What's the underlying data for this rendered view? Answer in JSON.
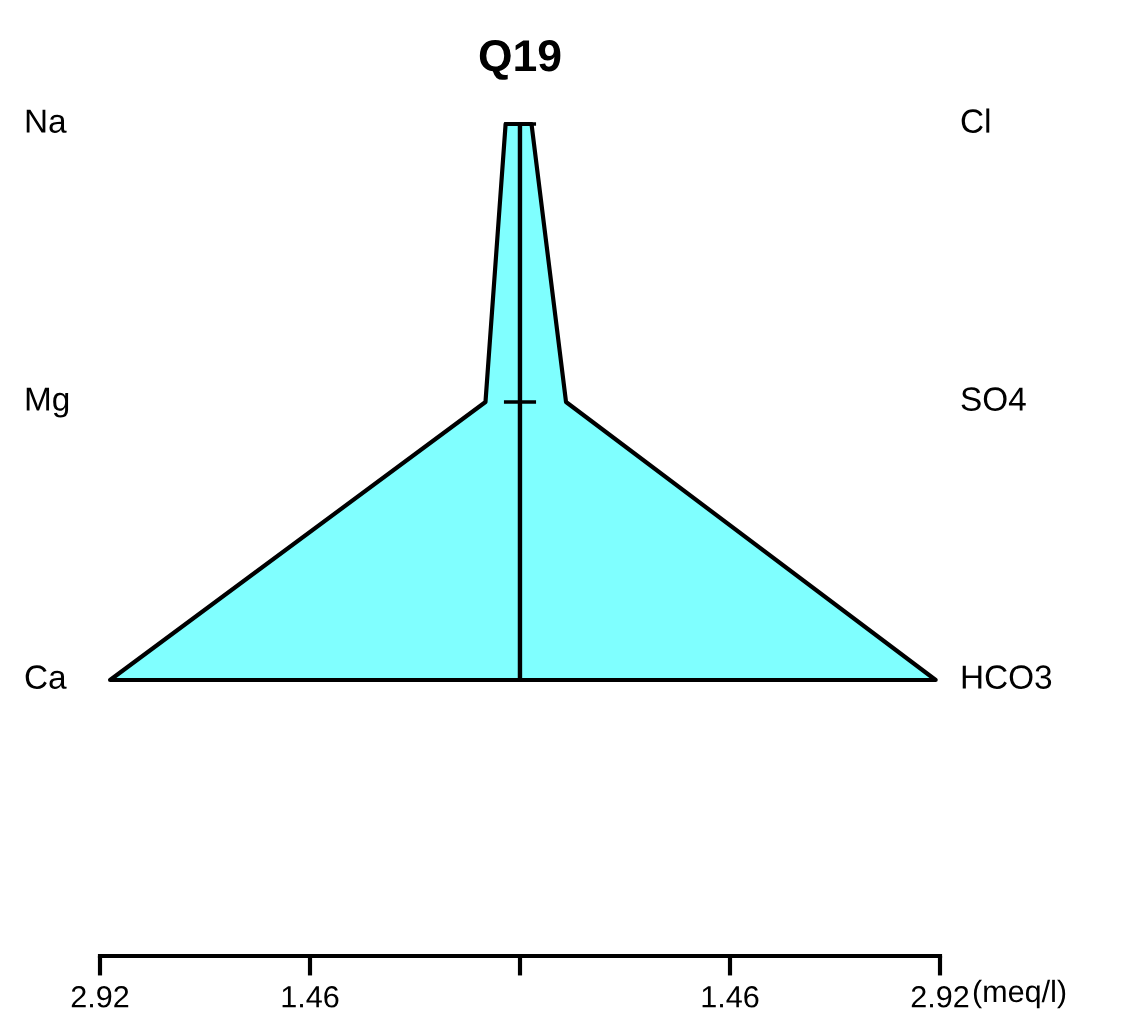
{
  "chart_data": {
    "type": "area",
    "orientation": "horizontal",
    "title": "Q19",
    "xlabel": "(meq/l)",
    "categories": [
      "Na",
      "Mg",
      "Ca"
    ],
    "y2_categories": [
      "Cl",
      "SO4",
      "HCO3"
    ],
    "series": [
      {
        "values": [
          -0.1,
          -0.24,
          -2.85
        ],
        "color": "#80ffff"
      },
      {
        "values": [
          0.08,
          0.32,
          2.89
        ],
        "color": "#7fffff"
      }
    ],
    "xlim": [
      -2.92,
      2.92
    ],
    "xticks": [
      {
        "value": -2.92,
        "label": "2.92"
      },
      {
        "value": -1.46,
        "label": "1.46"
      },
      {
        "value": 0,
        "label": null
      },
      {
        "value": 1.46,
        "label": "1.46"
      },
      {
        "value": 2.92,
        "label": "2.92"
      }
    ],
    "ref_lines": [
      {
        "axis": "x",
        "value": 0,
        "color": "#000000"
      }
    ],
    "grid": false,
    "legend": false
  }
}
